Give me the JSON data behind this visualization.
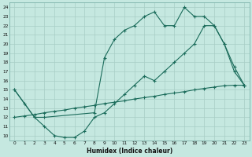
{
  "xlabel": "Humidex (Indice chaleur)",
  "bg_color": "#c5e8e0",
  "line_color": "#1a6b5a",
  "grid_color": "#a8cdc5",
  "xlim": [
    -0.5,
    23.5
  ],
  "ylim": [
    9.5,
    24.5
  ],
  "xticks": [
    0,
    1,
    2,
    3,
    4,
    5,
    6,
    7,
    8,
    9,
    10,
    11,
    12,
    13,
    14,
    15,
    16,
    17,
    18,
    19,
    20,
    21,
    22,
    23
  ],
  "yticks": [
    10,
    11,
    12,
    13,
    14,
    15,
    16,
    17,
    18,
    19,
    20,
    21,
    22,
    23,
    24
  ],
  "line1_x": [
    0,
    1,
    2,
    3,
    4,
    5,
    6,
    7,
    8,
    9,
    10,
    11,
    12,
    13,
    14,
    15,
    16,
    17,
    18,
    19,
    20,
    21,
    22,
    23
  ],
  "line1_y": [
    15,
    13.5,
    12,
    11,
    10,
    9.8,
    9.8,
    10.5,
    12,
    12.5,
    13.5,
    14.5,
    15.5,
    16.5,
    16,
    17,
    18,
    19,
    20,
    22,
    22,
    20,
    17.5,
    15.5
  ],
  "line2_x": [
    0,
    1,
    2,
    3,
    4,
    5,
    6,
    7,
    8,
    9,
    10,
    11,
    12,
    13,
    14,
    15,
    16,
    17,
    18,
    19,
    20,
    21,
    22,
    23
  ],
  "line2_y": [
    12,
    12.15,
    12.3,
    12.5,
    12.65,
    12.8,
    13.0,
    13.15,
    13.3,
    13.5,
    13.65,
    13.8,
    14.0,
    14.15,
    14.3,
    14.5,
    14.65,
    14.8,
    15.0,
    15.15,
    15.3,
    15.45,
    15.5,
    15.5
  ],
  "line3_x": [
    0,
    2,
    3,
    8,
    9,
    10,
    11,
    12,
    13,
    14,
    15,
    16,
    17,
    18,
    19,
    20,
    21,
    22,
    23
  ],
  "line3_y": [
    15,
    12,
    12,
    12.5,
    18.5,
    20.5,
    21.5,
    22,
    23,
    23.5,
    22,
    22,
    24,
    23,
    23,
    22,
    20,
    17,
    15.5
  ]
}
